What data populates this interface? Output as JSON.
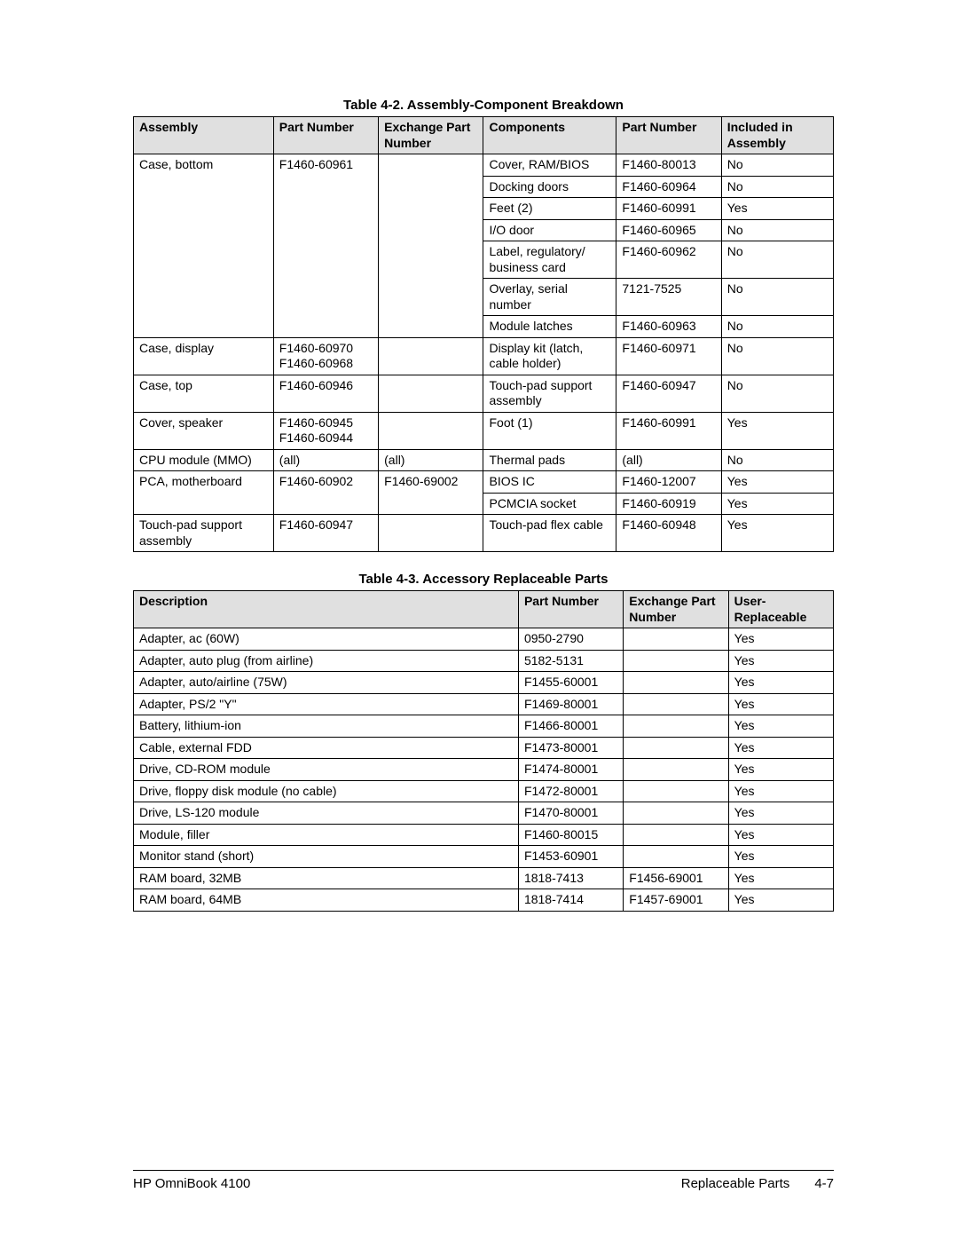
{
  "colors": {
    "header_bg": "#e0e0e0",
    "border": "#000000",
    "page_bg": "#ffffff",
    "text": "#000000"
  },
  "typography": {
    "font_family": "Arial",
    "body_fontsize_pt": 10.5,
    "title_fontsize_pt": 11,
    "title_weight": "bold"
  },
  "table1": {
    "title": "Table 4-2. Assembly-Component Breakdown",
    "columns": [
      "Assembly",
      "Part Number",
      "Exchange Part Number",
      "Components",
      "Part Number",
      "Included in Assembly"
    ],
    "column_widths_pct": [
      20,
      15,
      15,
      19,
      15,
      16
    ],
    "rows": [
      {
        "assembly": "Case, bottom",
        "assembly_rowspan": 7,
        "pn": "F1460-60961",
        "pn_rowspan": 7,
        "ex": "",
        "ex_rowspan": 7,
        "comp": "Cover, RAM/BIOS",
        "cpn": "F1460-80013",
        "inc": "No"
      },
      {
        "comp": "Docking doors",
        "cpn": "F1460-60964",
        "inc": "No"
      },
      {
        "comp": "Feet (2)",
        "cpn": "F1460-60991",
        "inc": "Yes"
      },
      {
        "comp": "I/O door",
        "cpn": "F1460-60965",
        "inc": "No"
      },
      {
        "comp": "Label, regulatory/ business card",
        "cpn": "F1460-60962",
        "inc": "No"
      },
      {
        "comp": "Overlay, serial number",
        "cpn": "7121-7525",
        "inc": "No"
      },
      {
        "comp": "Module latches",
        "cpn": "F1460-60963",
        "inc": "No"
      },
      {
        "assembly": "Case, display",
        "pn": "F1460-60970\nF1460-60968",
        "ex": "",
        "comp": "Display kit (latch, cable holder)",
        "cpn": "F1460-60971",
        "inc": "No"
      },
      {
        "assembly": "Case, top",
        "pn": "F1460-60946",
        "ex": "",
        "comp": "Touch-pad support assembly",
        "cpn": "F1460-60947",
        "inc": "No"
      },
      {
        "assembly": "Cover, speaker",
        "pn": "F1460-60945\nF1460-60944",
        "ex": "",
        "comp": "Foot (1)",
        "cpn": "F1460-60991",
        "inc": "Yes"
      },
      {
        "assembly": "CPU module (MMO)",
        "pn": "(all)",
        "ex": "(all)",
        "comp": "Thermal pads",
        "cpn": "(all)",
        "inc": "No"
      },
      {
        "assembly": "PCA, motherboard",
        "assembly_rowspan": 2,
        "pn": "F1460-60902",
        "pn_rowspan": 2,
        "ex": "F1460-69002",
        "ex_rowspan": 2,
        "comp": "BIOS IC",
        "cpn": "F1460-12007",
        "inc": "Yes"
      },
      {
        "comp": "PCMCIA socket",
        "cpn": "F1460-60919",
        "inc": "Yes"
      },
      {
        "assembly": "Touch-pad support assembly",
        "pn": "F1460-60947",
        "ex": "",
        "comp": "Touch-pad flex cable",
        "cpn": "F1460-60948",
        "inc": "Yes"
      }
    ]
  },
  "table2": {
    "title": "Table 4-3. Accessory Replaceable Parts",
    "columns": [
      "Description",
      "Part Number",
      "Exchange Part Number",
      "User-Replaceable"
    ],
    "column_widths_pct": [
      55,
      15,
      15,
      15
    ],
    "rows": [
      [
        "Adapter, ac (60W)",
        "0950-2790",
        "",
        "Yes"
      ],
      [
        "Adapter, auto plug (from airline)",
        "5182-5131",
        "",
        "Yes"
      ],
      [
        "Adapter, auto/airline (75W)",
        "F1455-60001",
        "",
        "Yes"
      ],
      [
        "Adapter, PS/2 \"Y\"",
        "F1469-80001",
        "",
        "Yes"
      ],
      [
        "Battery, lithium-ion",
        "F1466-80001",
        "",
        "Yes"
      ],
      [
        "Cable, external FDD",
        "F1473-80001",
        "",
        "Yes"
      ],
      [
        "Drive, CD-ROM module",
        "F1474-80001",
        "",
        "Yes"
      ],
      [
        "Drive, floppy disk module (no cable)",
        "F1472-80001",
        "",
        "Yes"
      ],
      [
        "Drive, LS-120 module",
        "F1470-80001",
        "",
        "Yes"
      ],
      [
        "Module, filler",
        "F1460-80015",
        "",
        "Yes"
      ],
      [
        "Monitor stand (short)",
        "F1453-60901",
        "",
        "Yes"
      ],
      [
        "RAM board, 32MB",
        "1818-7413",
        "F1456-69001",
        "Yes"
      ],
      [
        "RAM board, 64MB",
        "1818-7414",
        "F1457-69001",
        "Yes"
      ]
    ]
  },
  "footer": {
    "left": "HP OmniBook 4100",
    "right_label": "Replaceable Parts",
    "right_page": "4-7"
  }
}
